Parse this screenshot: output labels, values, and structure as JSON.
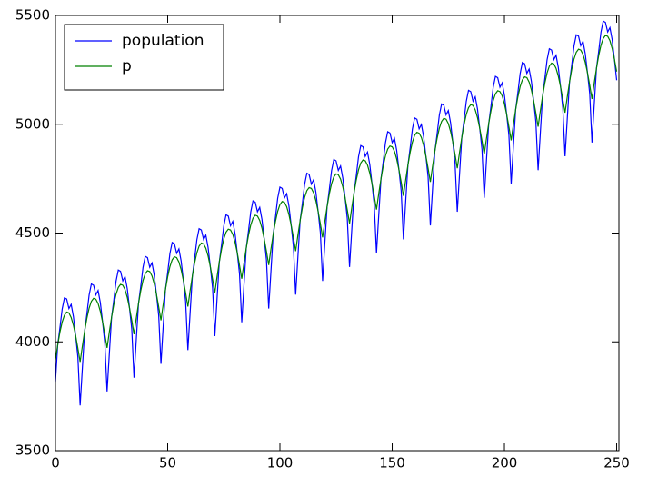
{
  "chart_data": {
    "type": "line",
    "x": [
      0,
      1,
      2,
      3,
      4,
      5,
      6,
      7,
      8,
      9,
      10,
      11,
      12,
      13,
      14,
      15,
      16,
      17,
      18,
      19,
      20,
      21,
      22,
      23,
      24,
      25,
      26,
      27,
      28,
      29,
      30,
      31,
      32,
      33,
      34,
      35,
      36,
      37,
      38,
      39,
      40,
      41,
      42,
      43,
      44,
      45,
      46,
      47,
      48,
      49,
      50,
      51,
      52,
      53,
      54,
      55,
      56,
      57,
      58,
      59,
      60,
      61,
      62,
      63,
      64,
      65,
      66,
      67,
      68,
      69,
      70,
      71,
      72,
      73,
      74,
      75,
      76,
      77,
      78,
      79,
      80,
      81,
      82,
      83,
      84,
      85,
      86,
      87,
      88,
      89,
      90,
      91,
      92,
      93,
      94,
      95,
      96,
      97,
      98,
      99,
      100,
      101,
      102,
      103,
      104,
      105,
      106,
      107,
      108,
      109,
      110,
      111,
      112,
      113,
      114,
      115,
      116,
      117,
      118,
      119,
      120,
      121,
      122,
      123,
      124,
      125,
      126,
      127,
      128,
      129,
      130,
      131,
      132,
      133,
      134,
      135,
      136,
      137,
      138,
      139,
      140,
      141,
      142,
      143,
      144,
      145,
      146,
      147,
      148,
      149,
      150,
      151,
      152,
      153,
      154,
      155,
      156,
      157,
      158,
      159,
      160,
      161,
      162,
      163,
      164,
      165,
      166,
      167,
      168,
      169,
      170,
      171,
      172,
      173,
      174,
      175,
      176,
      177,
      178,
      179,
      180,
      181,
      182,
      183,
      184,
      185,
      186,
      187,
      188,
      189,
      190,
      191,
      192,
      193,
      194,
      195,
      196,
      197,
      198,
      199,
      200,
      201,
      202,
      203,
      204,
      205,
      206,
      207,
      208,
      209,
      210,
      211,
      212,
      213,
      214,
      215,
      216,
      217,
      218,
      219,
      220,
      221,
      222,
      223,
      224,
      225,
      226,
      227,
      228,
      229,
      230,
      231,
      232,
      233,
      234,
      235,
      236,
      237,
      238,
      239,
      240,
      241,
      242,
      243,
      244,
      245,
      246,
      247,
      248,
      249,
      250
    ],
    "series": [
      {
        "name": "population",
        "color": "#0000ff",
        "values": [
          3817,
          3985,
          4065,
          4151,
          4202,
          4197,
          4153,
          4172,
          4116,
          4028,
          3930,
          3708,
          3881,
          4049,
          4128,
          4215,
          4266,
          4260,
          4216,
          4236,
          4180,
          4091,
          3994,
          3772,
          3945,
          4113,
          4192,
          4279,
          4330,
          4324,
          4280,
          4300,
          4244,
          4155,
          4058,
          3835,
          4008,
          4176,
          4255,
          4342,
          4393,
          4387,
          4343,
          4363,
          4307,
          4218,
          4121,
          3899,
          4072,
          4240,
          4319,
          4406,
          4457,
          4451,
          4407,
          4427,
          4371,
          4282,
          4185,
          3962,
          4135,
          4303,
          4382,
          4469,
          4520,
          4514,
          4470,
          4490,
          4434,
          4345,
          4248,
          4026,
          4199,
          4367,
          4446,
          4533,
          4584,
          4578,
          4534,
          4554,
          4498,
          4409,
          4312,
          4090,
          4263,
          4431,
          4510,
          4597,
          4648,
          4642,
          4598,
          4618,
          4562,
          4473,
          4376,
          4153,
          4326,
          4494,
          4573,
          4660,
          4711,
          4705,
          4661,
          4681,
          4625,
          4536,
          4439,
          4217,
          4390,
          4558,
          4637,
          4724,
          4775,
          4769,
          4725,
          4745,
          4689,
          4600,
          4503,
          4280,
          4453,
          4621,
          4700,
          4787,
          4838,
          4832,
          4788,
          4808,
          4752,
          4663,
          4566,
          4344,
          4517,
          4685,
          4764,
          4851,
          4902,
          4896,
          4852,
          4872,
          4816,
          4727,
          4630,
          4408,
          4581,
          4749,
          4828,
          4915,
          4966,
          4960,
          4916,
          4936,
          4880,
          4791,
          4694,
          4471,
          4644,
          4812,
          4891,
          4978,
          5029,
          5023,
          4979,
          4999,
          4943,
          4854,
          4757,
          4535,
          4708,
          4876,
          4955,
          5042,
          5093,
          5087,
          5043,
          5063,
          5007,
          4918,
          4821,
          4598,
          4771,
          4939,
          5018,
          5105,
          5156,
          5150,
          5106,
          5126,
          5070,
          4981,
          4884,
          4662,
          4835,
          5003,
          5082,
          5169,
          5220,
          5214,
          5170,
          5190,
          5134,
          5045,
          4948,
          4726,
          4899,
          5067,
          5146,
          5233,
          5284,
          5278,
          5234,
          5254,
          5198,
          5109,
          5012,
          4789,
          4962,
          5130,
          5209,
          5296,
          5347,
          5341,
          5297,
          5317,
          5261,
          5172,
          5075,
          4853,
          5026,
          5194,
          5273,
          5360,
          5411,
          5405,
          5361,
          5381,
          5325,
          5236,
          5139,
          4916,
          5089,
          5257,
          5336,
          5423,
          5474,
          5468,
          5424,
          5444,
          5388,
          5299,
          5202
        ]
      },
      {
        "name": "p",
        "color": "#008000",
        "values": [
          3917,
          3985,
          4045,
          4091,
          4122,
          4137,
          4133,
          4112,
          4076,
          4028,
          3970,
          3908,
          3981,
          4049,
          4108,
          4155,
          4186,
          4200,
          4196,
          4176,
          4140,
          4091,
          4034,
          3972,
          4045,
          4113,
          4172,
          4219,
          4250,
          4264,
          4260,
          4240,
          4204,
          4155,
          4098,
          4035,
          4108,
          4176,
          4235,
          4282,
          4313,
          4327,
          4323,
          4303,
          4267,
          4218,
          4161,
          4099,
          4172,
          4240,
          4299,
          4346,
          4377,
          4391,
          4387,
          4367,
          4331,
          4282,
          4225,
          4162,
          4235,
          4303,
          4362,
          4409,
          4440,
          4454,
          4450,
          4430,
          4394,
          4345,
          4288,
          4226,
          4299,
          4367,
          4426,
          4473,
          4504,
          4518,
          4514,
          4494,
          4458,
          4409,
          4352,
          4290,
          4363,
          4431,
          4490,
          4537,
          4568,
          4582,
          4578,
          4558,
          4522,
          4473,
          4416,
          4353,
          4426,
          4494,
          4553,
          4600,
          4631,
          4645,
          4641,
          4621,
          4585,
          4536,
          4479,
          4417,
          4490,
          4558,
          4617,
          4664,
          4695,
          4709,
          4705,
          4685,
          4649,
          4600,
          4543,
          4480,
          4553,
          4621,
          4680,
          4727,
          4758,
          4772,
          4768,
          4748,
          4712,
          4663,
          4606,
          4544,
          4617,
          4685,
          4744,
          4791,
          4822,
          4836,
          4832,
          4812,
          4776,
          4727,
          4670,
          4608,
          4681,
          4749,
          4808,
          4855,
          4886,
          4900,
          4896,
          4876,
          4840,
          4791,
          4734,
          4671,
          4744,
          4812,
          4871,
          4918,
          4949,
          4963,
          4959,
          4939,
          4903,
          4854,
          4797,
          4735,
          4808,
          4876,
          4935,
          4982,
          5013,
          5027,
          5023,
          5003,
          4967,
          4918,
          4861,
          4798,
          4871,
          4939,
          4998,
          5045,
          5076,
          5090,
          5086,
          5066,
          5030,
          4981,
          4924,
          4862,
          4935,
          5003,
          5062,
          5109,
          5140,
          5154,
          5150,
          5130,
          5094,
          5045,
          4988,
          4926,
          4999,
          5067,
          5126,
          5173,
          5204,
          5218,
          5214,
          5194,
          5158,
          5109,
          5052,
          4989,
          5062,
          5130,
          5189,
          5236,
          5267,
          5281,
          5277,
          5257,
          5221,
          5172,
          5115,
          5053,
          5126,
          5194,
          5253,
          5300,
          5331,
          5345,
          5341,
          5321,
          5285,
          5236,
          5179,
          5116,
          5189,
          5257,
          5316,
          5363,
          5394,
          5408,
          5404,
          5384,
          5348,
          5299,
          5242
        ]
      }
    ],
    "xlim": [
      0,
      251
    ],
    "xticks": [
      0,
      50,
      100,
      150,
      200,
      250
    ],
    "ylim": [
      3500,
      5500
    ],
    "yticks": [
      3500,
      4000,
      4500,
      5000,
      5500
    ],
    "grid": false,
    "legend": "upper left"
  }
}
